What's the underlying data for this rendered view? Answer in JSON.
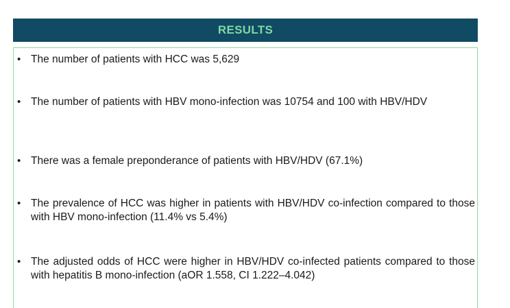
{
  "header": {
    "title": "RESULTS"
  },
  "bullets": [
    "The number of patients with HCC was 5,629",
    "The number of patients with HBV mono-infection was 10754 and 100 with HBV/HDV",
    "There was a female preponderance of patients with HBV/HDV (67.1%)",
    "The prevalence of HCC was higher in patients with HBV/HDV co-infection compared to those with HBV mono-infection (11.4% vs 5.4%)",
    "The adjusted odds of HCC were higher in HBV/HDV co-infected patients compared to those with hepatitis B mono-infection (aOR 1.558, CI 1.222–4.042)"
  ],
  "bullet_symbol": "•",
  "colors": {
    "header_bg": "#114a63",
    "header_text": "#7ed9a2",
    "panel_border": "#8fd9a8",
    "body_text": "#1a1a1a"
  }
}
